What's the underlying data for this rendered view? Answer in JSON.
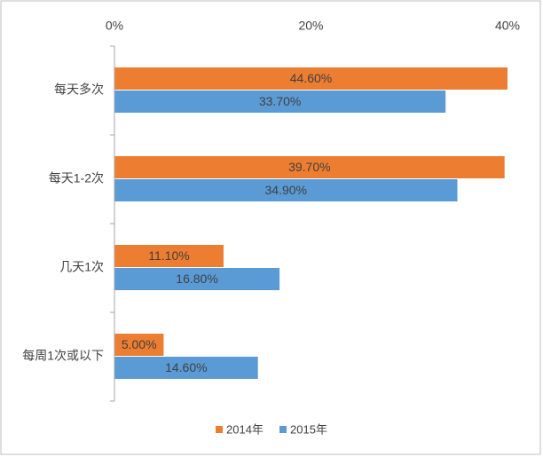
{
  "chart_data": {
    "type": "barh",
    "categories": [
      "每天多次",
      "每天1-2次",
      "几天1次",
      "每周1次或以下"
    ],
    "series": [
      {
        "name": "2014年",
        "color": "#ed7d31",
        "values": [
          44.6,
          39.7,
          11.1,
          5.0
        ],
        "value_labels": [
          "44.60%",
          "39.70%",
          "11.10%",
          "5.00%"
        ]
      },
      {
        "name": "2015年",
        "color": "#5b9bd5",
        "values": [
          33.7,
          34.9,
          16.8,
          14.6
        ],
        "value_labels": [
          "33.70%",
          "34.90%",
          "16.80%",
          "14.60%"
        ]
      }
    ],
    "xlim": [
      0,
      40
    ],
    "xticks": [
      {
        "value": 0,
        "label": "0%"
      },
      {
        "value": 20,
        "label": "20%"
      },
      {
        "value": 40,
        "label": "40%"
      }
    ],
    "legend": "bottom"
  }
}
